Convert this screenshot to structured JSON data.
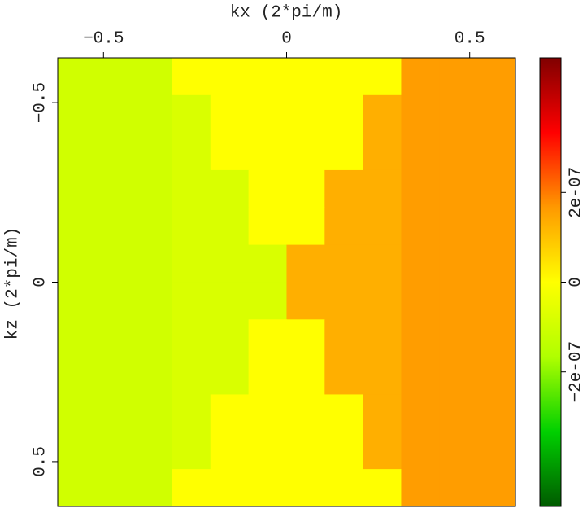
{
  "chart_data": {
    "type": "heatmap",
    "x_label": "kx (2*pi/m)",
    "y_label": "kz (2*pi/m)",
    "xlim": [
      -0.625,
      0.625
    ],
    "ylim": [
      -0.625,
      0.625
    ],
    "y_inverted": true,
    "xticks": [
      {
        "value": -0.5,
        "label": "−0.5"
      },
      0,
      0.5
    ],
    "yticks": [
      {
        "value": -0.5,
        "label": "−0.5"
      },
      0,
      0.5
    ],
    "x": [
      -0.573,
      -0.469,
      -0.365,
      -0.26,
      -0.156,
      -0.052,
      0.052,
      0.156,
      0.26,
      0.365,
      0.469,
      0.573
    ],
    "y": [
      -0.573,
      -0.469,
      -0.365,
      -0.26,
      -0.156,
      -0.052,
      0.052,
      0.156,
      0.26,
      0.365,
      0.469,
      0.573
    ],
    "z": [
      [
        -1e-07,
        -1e-07,
        -1e-07,
        0,
        0,
        0,
        0,
        0,
        0,
        1.6e-07,
        1.6e-07,
        1.6e-07
      ],
      [
        -1e-07,
        -1e-07,
        -1e-07,
        -8e-08,
        0,
        0,
        0,
        0,
        1.3e-07,
        1.6e-07,
        1.6e-07,
        1.6e-07
      ],
      [
        -1e-07,
        -1e-07,
        -1e-07,
        -8e-08,
        0,
        0,
        0,
        0,
        1.3e-07,
        1.6e-07,
        1.6e-07,
        1.6e-07
      ],
      [
        -1e-07,
        -1e-07,
        -1e-07,
        -8e-08,
        -8e-08,
        0,
        0,
        1.3e-07,
        1.3e-07,
        1.6e-07,
        1.6e-07,
        1.6e-07
      ],
      [
        -1e-07,
        -1e-07,
        -1e-07,
        -8e-08,
        -8e-08,
        0,
        0,
        1.3e-07,
        1.3e-07,
        1.6e-07,
        1.6e-07,
        1.6e-07
      ],
      [
        -1e-07,
        -1e-07,
        -1e-07,
        -8e-08,
        -8e-08,
        -8e-08,
        1.3e-07,
        1.3e-07,
        1.3e-07,
        1.6e-07,
        1.6e-07,
        1.6e-07
      ],
      [
        -1e-07,
        -1e-07,
        -1e-07,
        -8e-08,
        -8e-08,
        -8e-08,
        1.3e-07,
        1.3e-07,
        1.3e-07,
        1.6e-07,
        1.6e-07,
        1.6e-07
      ],
      [
        -1e-07,
        -1e-07,
        -1e-07,
        -8e-08,
        -8e-08,
        0,
        0,
        1.3e-07,
        1.3e-07,
        1.6e-07,
        1.6e-07,
        1.6e-07
      ],
      [
        -1e-07,
        -1e-07,
        -1e-07,
        -8e-08,
        -8e-08,
        0,
        0,
        1.3e-07,
        1.3e-07,
        1.6e-07,
        1.6e-07,
        1.6e-07
      ],
      [
        -1e-07,
        -1e-07,
        -1e-07,
        -8e-08,
        0,
        0,
        0,
        0,
        1.3e-07,
        1.6e-07,
        1.6e-07,
        1.6e-07
      ],
      [
        -1e-07,
        -1e-07,
        -1e-07,
        -8e-08,
        0,
        0,
        0,
        0,
        1.3e-07,
        1.6e-07,
        1.6e-07,
        1.6e-07
      ],
      [
        -1e-07,
        -1e-07,
        -1e-07,
        0,
        0,
        0,
        0,
        0,
        0,
        1.6e-07,
        1.6e-07,
        1.6e-07
      ]
    ],
    "clim": [
      -5e-07,
      5e-07
    ],
    "cticks": [
      {
        "value": -2e-07,
        "label": "−2e-07"
      },
      0,
      {
        "value": 2e-07,
        "label": "2e-07"
      }
    ],
    "colormap": [
      "#005a00",
      "#00d000",
      "#b0ff00",
      "#ffff00",
      "#ff9900",
      "#ff0000",
      "#800000"
    ]
  }
}
